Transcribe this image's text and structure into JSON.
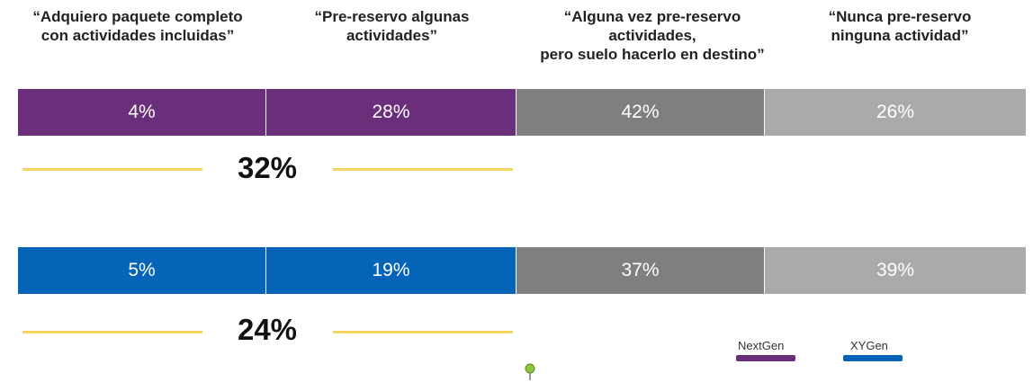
{
  "chart_data": {
    "type": "bar",
    "stacked": true,
    "orientation": "horizontal",
    "categories": [
      "“Adquiero paquete completo\ncon actividades incluidas”",
      "“Pre-reservo algunas\nactividades”",
      "“Alguna vez pre-reservo\nactividades,\npero suelo hacerlo en destino”",
      "“Nunca pre-reservo\nninguna actividad”"
    ],
    "series": [
      {
        "name": "NextGen",
        "values": [
          4,
          28,
          42,
          26
        ],
        "labels": [
          "4%",
          "28%",
          "42%",
          "26%"
        ],
        "colors": [
          "#6b2e7b",
          "#6b2e7b",
          "#7f7f7f",
          "#aaaaaa"
        ],
        "total_label": "32%"
      },
      {
        "name": "XYGen",
        "values": [
          5,
          19,
          37,
          39
        ],
        "labels": [
          "5%",
          "19%",
          "37%",
          "39%"
        ],
        "colors": [
          "#0563b8",
          "#0563b8",
          "#7f7f7f",
          "#aaaaaa"
        ],
        "total_label": "24%"
      }
    ],
    "legend": {
      "placement": "bottom-right",
      "items": [
        {
          "name": "NextGen",
          "color": "#6b2e7b"
        },
        {
          "name": "XYGen",
          "color": "#0563b8"
        }
      ]
    },
    "accent_line_color": "#f2d460"
  }
}
